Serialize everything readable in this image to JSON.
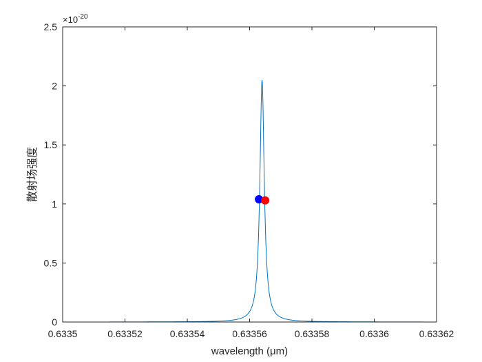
{
  "chart_data": {
    "type": "line",
    "title": "",
    "xlabel": "wavelength (μm)",
    "ylabel": "散射场强度",
    "y_exponent_label": "×10",
    "y_exponent_power": "-20",
    "xlim": [
      0.6335,
      0.63362
    ],
    "ylim": [
      0,
      2.5
    ],
    "x_ticks": [
      0.6335,
      0.63352,
      0.63354,
      0.63356,
      0.63358,
      0.6336,
      0.63362
    ],
    "x_tick_labels": [
      "0.6335",
      "0.63352",
      "0.63354",
      "0.63356",
      "0.63358",
      "0.6336",
      "0.63362"
    ],
    "y_ticks": [
      0,
      0.5,
      1,
      1.5,
      2,
      2.5
    ],
    "y_tick_labels": [
      "0",
      "0.5",
      "1",
      "1.5",
      "2",
      "2.5"
    ],
    "grid": false,
    "box": true,
    "series": [
      {
        "kind": "lorentzian-line",
        "color": "#0072bd",
        "x_start": 0.633515,
        "x_end": 0.633615,
        "peak_x": 0.633564,
        "peak_y": 2.05,
        "half_width": 8.5e-07
      }
    ],
    "markers": [
      {
        "x": 0.633563,
        "y": 1.04,
        "color": "#0000ff"
      },
      {
        "x": 0.633565,
        "y": 1.03,
        "color": "#ff0000"
      }
    ]
  }
}
